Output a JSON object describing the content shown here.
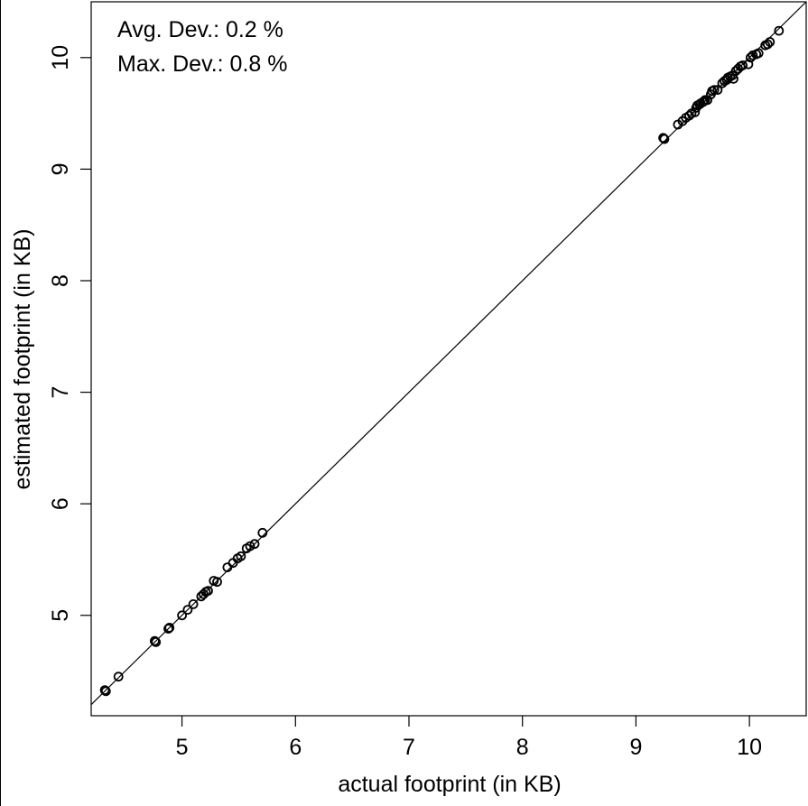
{
  "chart_data": {
    "type": "scatter",
    "title": "",
    "xlabel": "actual footprint (in KB)",
    "ylabel": "estimated footprint (in KB)",
    "xlim": [
      4.2,
      10.5
    ],
    "ylim": [
      4.1,
      10.5
    ],
    "xticks": [
      5,
      6,
      7,
      8,
      9,
      10
    ],
    "yticks": [
      5,
      6,
      7,
      8,
      9,
      10
    ],
    "grid": false,
    "annotations": [
      "Avg. Dev.: 0.2 %",
      "Max. Dev.: 0.8 %"
    ],
    "reference_line": {
      "type": "identity",
      "color": "#000000"
    },
    "marker": {
      "shape": "open-circle",
      "color": "#000000"
    },
    "series": [
      {
        "points": [
          [
            4.32,
            4.33
          ],
          [
            4.33,
            4.32
          ],
          [
            4.44,
            4.45
          ],
          [
            4.76,
            4.77
          ],
          [
            4.77,
            4.76
          ],
          [
            4.88,
            4.88
          ],
          [
            4.89,
            4.89
          ],
          [
            5.0,
            5.0
          ],
          [
            5.05,
            5.05
          ],
          [
            5.1,
            5.1
          ],
          [
            5.17,
            5.17
          ],
          [
            5.19,
            5.19
          ],
          [
            5.21,
            5.21
          ],
          [
            5.23,
            5.22
          ],
          [
            5.28,
            5.31
          ],
          [
            5.31,
            5.3
          ],
          [
            5.4,
            5.43
          ],
          [
            5.45,
            5.47
          ],
          [
            5.49,
            5.51
          ],
          [
            5.52,
            5.53
          ],
          [
            5.57,
            5.6
          ],
          [
            5.6,
            5.62
          ],
          [
            5.64,
            5.64
          ],
          [
            5.71,
            5.74
          ],
          [
            9.24,
            9.28
          ],
          [
            9.25,
            9.27
          ],
          [
            9.37,
            9.4
          ],
          [
            9.41,
            9.43
          ],
          [
            9.44,
            9.46
          ],
          [
            9.47,
            9.48
          ],
          [
            9.49,
            9.5
          ],
          [
            9.52,
            9.51
          ],
          [
            9.53,
            9.55
          ],
          [
            9.54,
            9.57
          ],
          [
            9.56,
            9.58
          ],
          [
            9.57,
            9.59
          ],
          [
            9.59,
            9.6
          ],
          [
            9.6,
            9.61
          ],
          [
            9.61,
            9.62
          ],
          [
            9.63,
            9.62
          ],
          [
            9.66,
            9.67
          ],
          [
            9.67,
            9.7
          ],
          [
            9.69,
            9.71
          ],
          [
            9.72,
            9.71
          ],
          [
            9.76,
            9.77
          ],
          [
            9.78,
            9.79
          ],
          [
            9.8,
            9.8
          ],
          [
            9.81,
            9.82
          ],
          [
            9.83,
            9.83
          ],
          [
            9.85,
            9.84
          ],
          [
            9.86,
            9.81
          ],
          [
            9.88,
            9.88
          ],
          [
            9.9,
            9.9
          ],
          [
            9.92,
            9.92
          ],
          [
            9.94,
            9.93
          ],
          [
            9.99,
            9.94
          ],
          [
            10.01,
            10.0
          ],
          [
            10.03,
            10.02
          ],
          [
            10.06,
            10.03
          ],
          [
            10.08,
            10.04
          ],
          [
            10.14,
            10.11
          ],
          [
            10.16,
            10.12
          ],
          [
            10.18,
            10.14
          ],
          [
            10.26,
            10.24
          ]
        ]
      }
    ]
  }
}
